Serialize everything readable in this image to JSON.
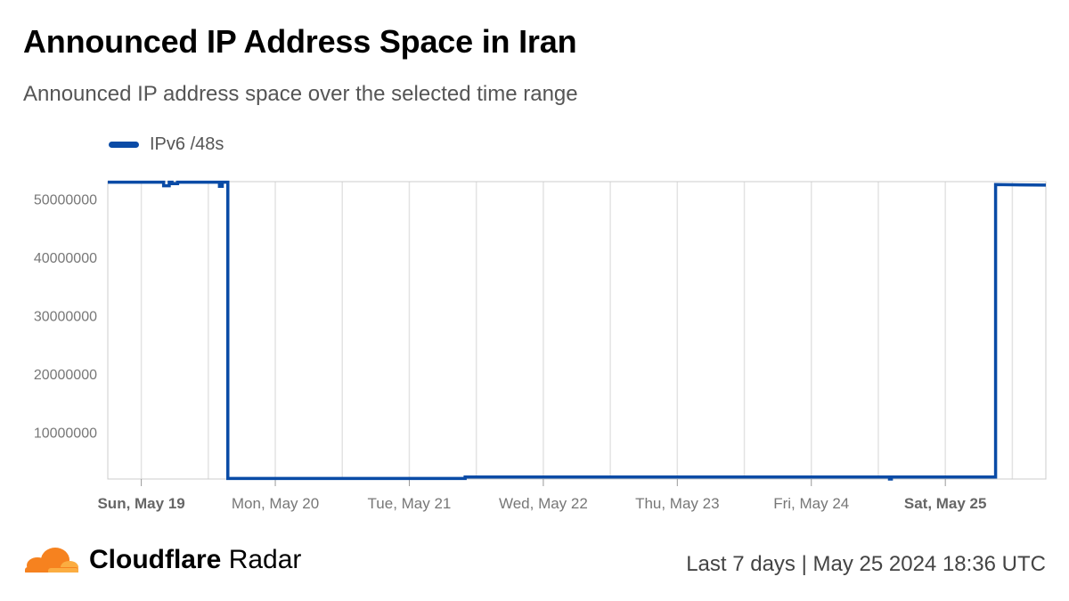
{
  "page": {
    "title": "Announced IP Address Space in Iran",
    "subtitle": "Announced IP address space over the selected time range"
  },
  "legend": {
    "series_name": "IPv6 /48s",
    "color": "#0a4ba6"
  },
  "footer": {
    "brand_bold": "Cloudflare",
    "brand_light": "Radar",
    "time_range": "Last 7 days",
    "separator": "|",
    "timestamp": "May 25 2024 18:36 UTC",
    "logo_colors": [
      "#f6821f",
      "#fbad41"
    ]
  },
  "chart_data": {
    "type": "line",
    "xlabel": "",
    "ylabel": "",
    "ylim": [
      2000000,
      53000000
    ],
    "yticks": [
      10000000,
      20000000,
      30000000,
      40000000,
      50000000
    ],
    "ytick_labels": [
      "10000000",
      "20000000",
      "30000000",
      "40000000",
      "50000000"
    ],
    "grid": "vertical",
    "legend_position": "top-left",
    "xlim": [
      "2024-05-18 18:00",
      "2024-05-25 18:00"
    ],
    "xticks": [
      {
        "date": "2024-05-19 00:00",
        "label": "Sun, May 19",
        "bold": true
      },
      {
        "date": "2024-05-20 00:00",
        "label": "Mon, May 20",
        "bold": false
      },
      {
        "date": "2024-05-21 00:00",
        "label": "Tue, May 21",
        "bold": false
      },
      {
        "date": "2024-05-22 00:00",
        "label": "Wed, May 22",
        "bold": false
      },
      {
        "date": "2024-05-23 00:00",
        "label": "Thu, May 23",
        "bold": false
      },
      {
        "date": "2024-05-24 00:00",
        "label": "Fri, May 24",
        "bold": false
      },
      {
        "date": "2024-05-25 00:00",
        "label": "Sat, May 25",
        "bold": true
      }
    ],
    "series": [
      {
        "name": "IPv6 /48s",
        "color": "#0a4ba6",
        "points": [
          [
            "2024-05-18 18:00",
            52900000
          ],
          [
            "2024-05-19 04:00",
            52900000
          ],
          [
            "2024-05-19 04:00",
            52300000
          ],
          [
            "2024-05-19 05:00",
            52300000
          ],
          [
            "2024-05-19 05:00",
            52900000
          ],
          [
            "2024-05-19 05:30",
            52900000
          ],
          [
            "2024-05-19 05:30",
            52650000
          ],
          [
            "2024-05-19 06:30",
            52650000
          ],
          [
            "2024-05-19 06:30",
            52900000
          ],
          [
            "2024-05-19 14:00",
            52900000
          ],
          [
            "2024-05-19 14:00",
            52200000
          ],
          [
            "2024-05-19 14:30",
            52200000
          ],
          [
            "2024-05-19 14:30",
            52900000
          ],
          [
            "2024-05-19 15:30",
            52900000
          ],
          [
            "2024-05-19 15:30",
            2100000
          ],
          [
            "2024-05-21 10:00",
            2100000
          ],
          [
            "2024-05-21 10:00",
            2350000
          ],
          [
            "2024-05-24 14:00",
            2350000
          ],
          [
            "2024-05-24 14:00",
            2000000
          ],
          [
            "2024-05-24 14:20",
            2000000
          ],
          [
            "2024-05-24 14:20",
            2350000
          ],
          [
            "2024-05-25 09:00",
            2350000
          ],
          [
            "2024-05-25 09:00",
            52500000
          ],
          [
            "2024-05-25 18:00",
            52400000
          ]
        ]
      }
    ]
  }
}
